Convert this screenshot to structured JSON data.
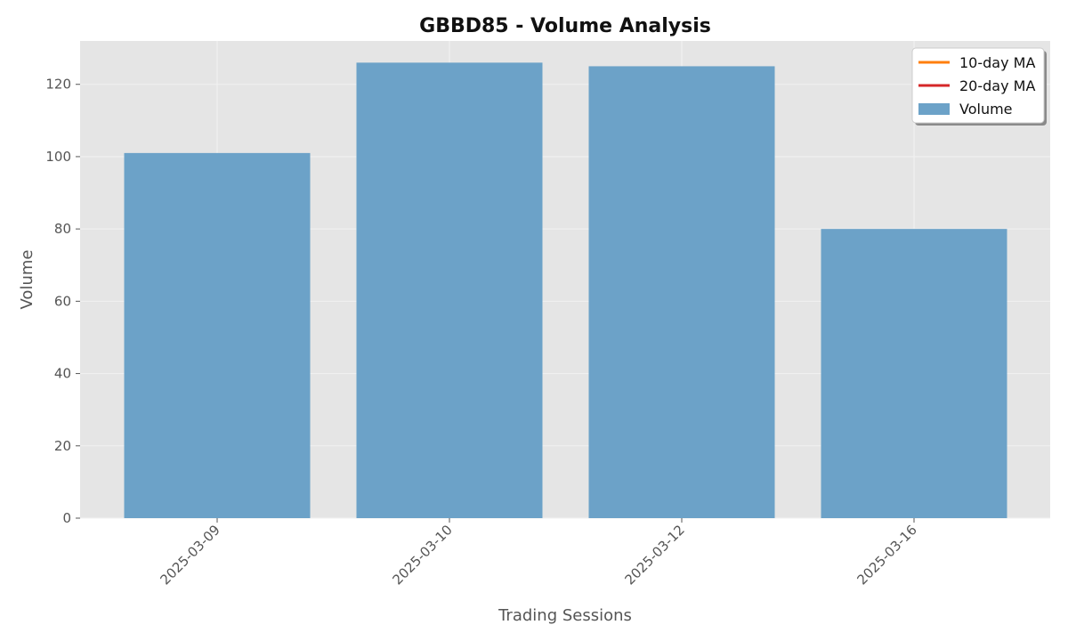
{
  "chart_data": {
    "type": "bar",
    "title": "GBBD85 - Volume Analysis",
    "xlabel": "Trading Sessions",
    "ylabel": "Volume",
    "categories": [
      "2025-03-09",
      "2025-03-10",
      "2025-03-12",
      "2025-03-16"
    ],
    "series": [
      {
        "name": "Volume",
        "values": [
          101,
          126,
          125,
          80
        ],
        "color": "#6ca2c8"
      }
    ],
    "line_series": [
      {
        "name": "10-day MA",
        "values": [],
        "color": "#ff7f0e"
      },
      {
        "name": "20-day MA",
        "values": [],
        "color": "#d62728"
      }
    ],
    "ylim": [
      0,
      132
    ],
    "yticks": [
      0,
      20,
      40,
      60,
      80,
      100,
      120
    ],
    "grid": true,
    "legend_position": "top-right",
    "background_color": "#e5e5e5"
  }
}
